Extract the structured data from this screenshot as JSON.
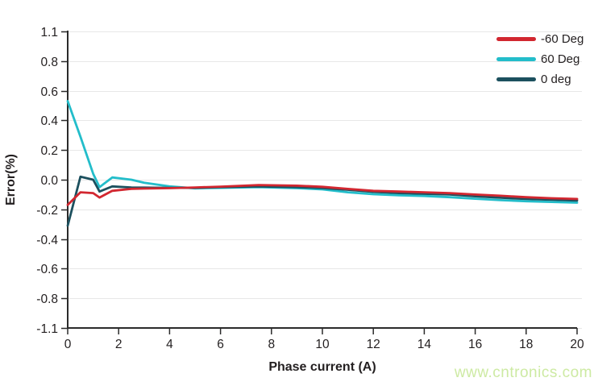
{
  "figure": {
    "background": "#ffffff",
    "text_color": "#231f20",
    "axis_color": "#2b2b2b",
    "grid_color": "#e7e7e7",
    "watermark": "www.cntronics.com",
    "watermark_color": "#cdeaa3"
  },
  "chart_data": {
    "type": "line",
    "title": "",
    "xlabel": "Phase current (A)",
    "ylabel": "Error(%)",
    "xlim": [
      0,
      20
    ],
    "x_ticks": [
      0,
      2,
      4,
      6,
      8,
      10,
      12,
      14,
      16,
      18,
      20
    ],
    "y_tick_labels": [
      "1.1",
      "0.8",
      "0.6",
      "0.4",
      "0.2",
      "0.0",
      "-0.2",
      "-0.4",
      "-0.6",
      "-0.8",
      "-1.1"
    ],
    "y_zero_tick_index": 5,
    "y_units_per_tick": 0.2,
    "grid": "horizontal",
    "legend_position": "top-right",
    "x": [
      0,
      0.5,
      1,
      1.25,
      1.75,
      2.5,
      3,
      4,
      5,
      6,
      7.5,
      9,
      10,
      11,
      12,
      13,
      14,
      15,
      16,
      17,
      18,
      19,
      20
    ],
    "series": [
      {
        "name": "-60 Deg",
        "color": "#d22730",
        "values": [
          -0.17,
          -0.085,
          -0.09,
          -0.12,
          -0.075,
          -0.062,
          -0.06,
          -0.057,
          -0.052,
          -0.047,
          -0.036,
          -0.04,
          -0.048,
          -0.062,
          -0.075,
          -0.08,
          -0.085,
          -0.09,
          -0.1,
          -0.108,
          -0.118,
          -0.125,
          -0.13
        ]
      },
      {
        "name": "60 Deg",
        "color": "#23bdca",
        "values": [
          0.53,
          0.29,
          0.04,
          -0.05,
          0.015,
          0.0,
          -0.02,
          -0.045,
          -0.058,
          -0.055,
          -0.05,
          -0.057,
          -0.065,
          -0.085,
          -0.098,
          -0.105,
          -0.11,
          -0.118,
          -0.128,
          -0.138,
          -0.145,
          -0.15,
          -0.155
        ]
      },
      {
        "name": "0 deg",
        "color": "#1c505e",
        "values": [
          -0.31,
          0.02,
          0.0,
          -0.08,
          -0.045,
          -0.052,
          -0.053,
          -0.055,
          -0.055,
          -0.05,
          -0.045,
          -0.05,
          -0.056,
          -0.068,
          -0.082,
          -0.09,
          -0.095,
          -0.1,
          -0.112,
          -0.122,
          -0.13,
          -0.135,
          -0.14
        ]
      }
    ],
    "draw_order": [
      1,
      2,
      0
    ]
  }
}
